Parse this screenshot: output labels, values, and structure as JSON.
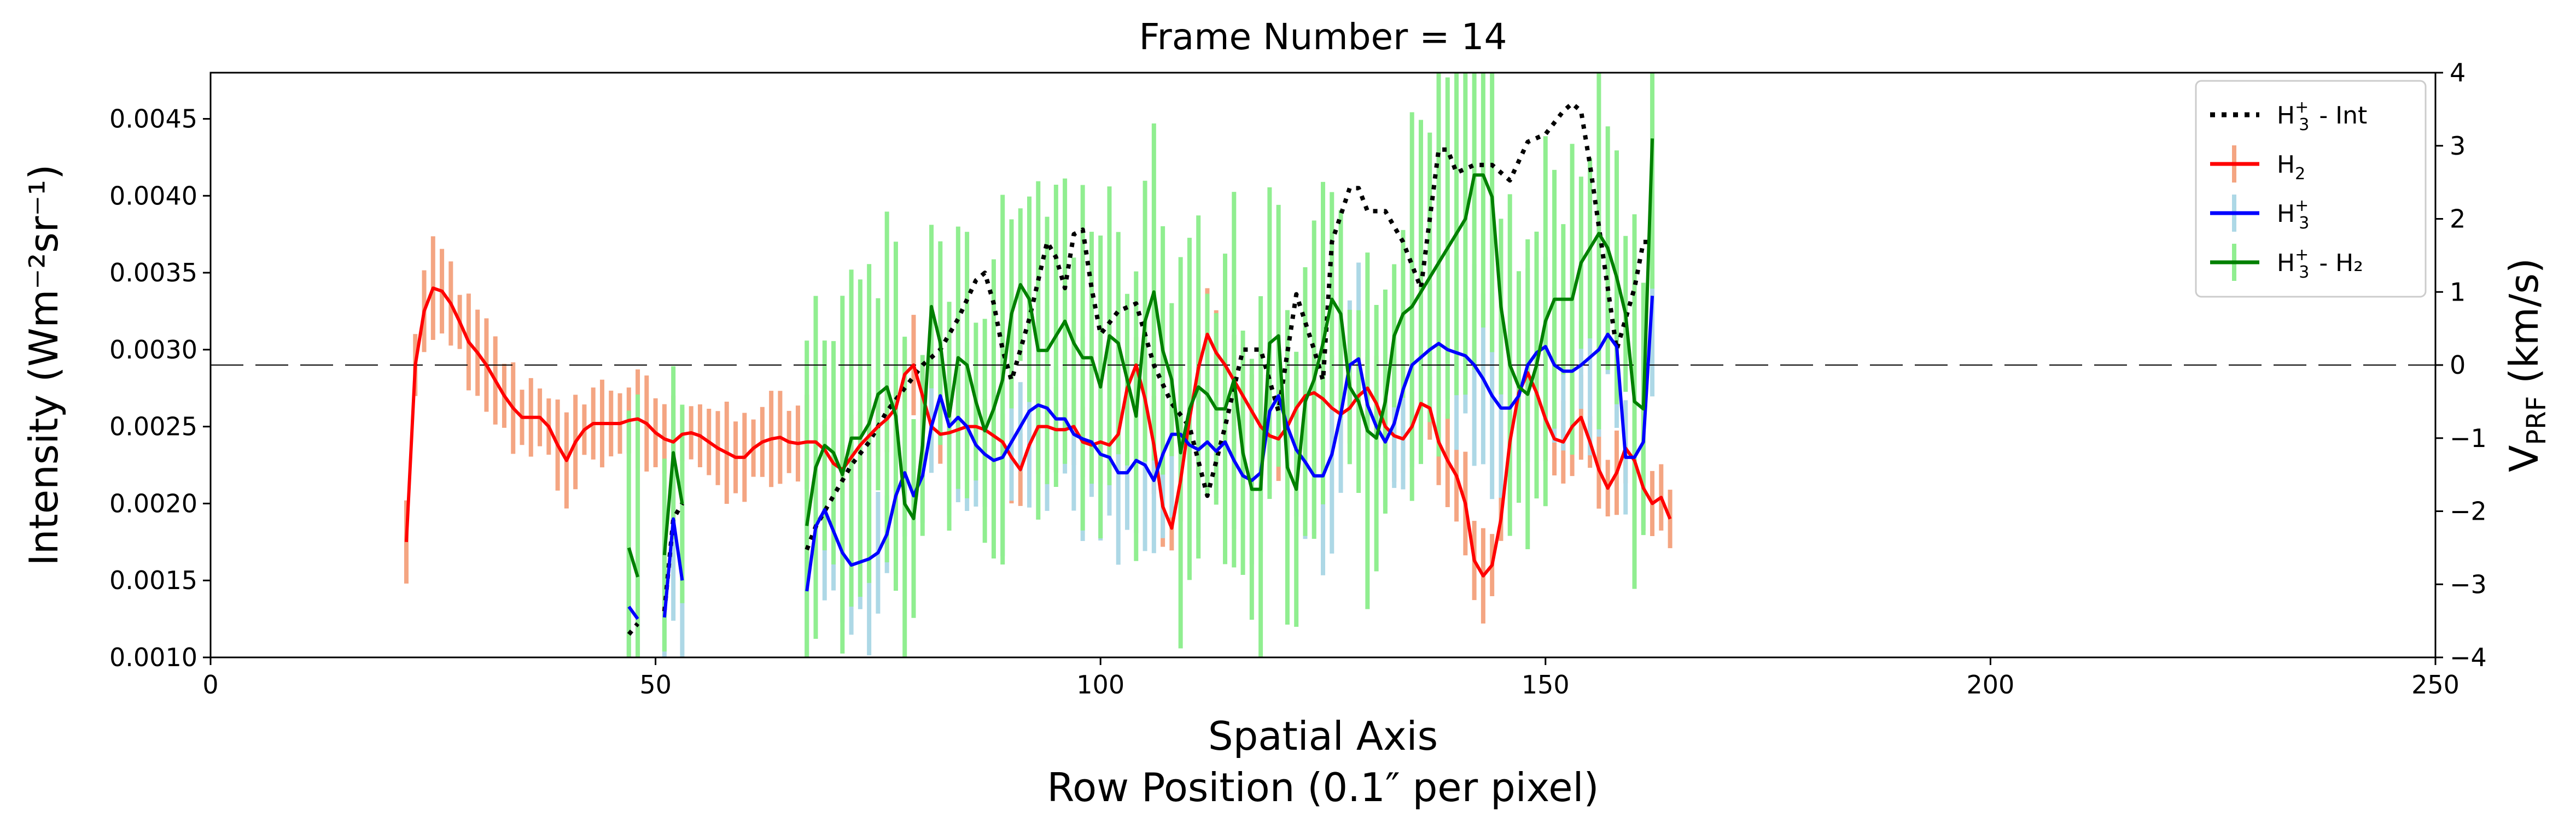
{
  "chart_data": {
    "type": "line",
    "title": "Frame Number = 14",
    "xlabel_line1": "Spatial Axis",
    "xlabel_line2": "Row Position (0.1″ per pixel)",
    "ylabel_left": "Intensity (Wm⁻²sr⁻¹)",
    "ylabel_right": "V",
    "ylabel_right_sub": "PRF",
    "ylabel_right_unit": " (km/s)",
    "xlim": [
      0,
      250
    ],
    "ylim_left": [
      0.001,
      0.0048
    ],
    "ylim_right": [
      -4,
      4
    ],
    "xticks": [
      0,
      50,
      100,
      150,
      200,
      250
    ],
    "xtick_labels": [
      "0",
      "50",
      "100",
      "150",
      "200",
      "250"
    ],
    "yticks_left": [
      0.001,
      0.0015,
      0.002,
      0.0025,
      0.003,
      0.0035,
      0.004,
      0.0045
    ],
    "ytick_labels_left": [
      "0.0010",
      "0.0015",
      "0.0020",
      "0.0025",
      "0.0030",
      "0.0035",
      "0.0040",
      "0.0045"
    ],
    "yticks_right": [
      -4,
      -3,
      -2,
      -1,
      0,
      1,
      2,
      3,
      4
    ],
    "ytick_labels_right": [
      "−4",
      "−3",
      "−2",
      "−1",
      "0",
      "1",
      "2",
      "3",
      "4"
    ],
    "zero_line": 0,
    "legend_position": "top-right",
    "series": [
      {
        "name": "H₃⁺ - Int",
        "label_base": "H",
        "label_sub": "3",
        "label_sup": "+",
        "label_rest": " - Int",
        "axis": "left",
        "color": "#000000",
        "style": "dotted",
        "segments": [
          {
            "x": [
              47,
              48
            ],
            "y": [
              0.00115,
              0.00122
            ]
          },
          {
            "x": [
              51,
              52,
              53
            ],
            "y": [
              0.0013,
              0.0019,
              0.002
            ]
          },
          {
            "x": [
              67,
              68,
              70,
              72,
              74,
              76,
              78,
              80,
              82,
              84,
              86,
              87,
              88,
              89,
              90,
              92,
              94,
              95,
              96,
              97,
              98,
              99,
              100,
              102,
              104,
              106,
              108,
              110,
              112,
              114,
              116,
              118,
              120,
              122,
              124,
              125,
              126,
              128,
              129,
              130,
              132,
              134,
              136,
              138,
              139,
              140,
              142,
              144,
              146,
              148,
              150,
              152,
              153,
              154,
              155,
              156,
              158,
              160,
              161,
              162
            ],
            "y": [
              0.0017,
              0.00185,
              0.00205,
              0.00225,
              0.0024,
              0.0026,
              0.00275,
              0.0029,
              0.003,
              0.0032,
              0.00345,
              0.0035,
              0.0033,
              0.003,
              0.0028,
              0.0032,
              0.0037,
              0.0036,
              0.0034,
              0.00375,
              0.00378,
              0.0034,
              0.0031,
              0.00325,
              0.0033,
              0.0029,
              0.00265,
              0.0025,
              0.00205,
              0.0025,
              0.003,
              0.003,
              0.0026,
              0.00336,
              0.003,
              0.0028,
              0.0037,
              0.00405,
              0.00405,
              0.0039,
              0.0039,
              0.0037,
              0.0034,
              0.0043,
              0.0043,
              0.00415,
              0.0042,
              0.0042,
              0.0041,
              0.00435,
              0.0044,
              0.00455,
              0.0046,
              0.00455,
              0.0042,
              0.0038,
              0.003,
              0.0034,
              0.0037,
              0.0037
            ]
          }
        ]
      },
      {
        "name": "H₂",
        "label_base": "H",
        "label_sub": "2",
        "label_sup": "",
        "label_rest": "",
        "axis": "left",
        "color": "#ff0000",
        "err_color": "#f4a582",
        "style": "solid",
        "segments": [
          {
            "x": [
              22,
              23,
              24,
              25,
              26,
              27,
              28,
              29,
              30,
              31,
              32,
              33,
              34,
              35,
              36,
              37,
              38,
              39,
              40,
              41,
              42,
              43,
              44,
              45,
              46,
              47,
              48,
              49,
              50,
              51,
              52,
              53,
              54,
              55,
              56,
              57,
              58,
              59,
              60,
              61,
              62,
              63,
              64,
              65,
              66,
              67,
              68,
              69,
              70,
              71,
              72,
              73,
              74,
              75,
              76,
              77,
              78,
              79,
              80,
              81,
              82,
              83,
              84,
              85,
              86,
              87,
              88,
              89,
              90,
              91,
              92,
              93,
              94,
              95,
              96,
              97,
              98,
              99,
              100,
              101,
              102,
              103,
              104,
              105,
              106,
              107,
              108,
              109,
              110,
              111,
              112,
              113,
              114,
              115,
              116,
              117,
              118,
              119,
              120,
              121,
              122,
              123,
              124,
              125,
              126,
              127,
              128,
              129,
              130,
              131,
              132,
              133,
              134,
              135,
              136,
              137,
              138,
              139,
              140,
              141,
              142,
              143,
              144,
              145,
              146,
              147,
              148,
              149,
              150,
              151,
              152,
              153,
              154,
              155,
              156,
              157,
              158,
              159,
              160,
              161,
              162,
              163,
              164
            ],
            "y": [
              0.00175,
              0.0029,
              0.00325,
              0.0034,
              0.00338,
              0.0033,
              0.00318,
              0.00305,
              0.00298,
              0.0029,
              0.0028,
              0.0027,
              0.00262,
              0.00256,
              0.00256,
              0.00256,
              0.0025,
              0.00238,
              0.00228,
              0.0024,
              0.00248,
              0.00252,
              0.00252,
              0.00252,
              0.00252,
              0.00254,
              0.00255,
              0.00252,
              0.00246,
              0.00242,
              0.0024,
              0.00245,
              0.00246,
              0.00244,
              0.0024,
              0.00236,
              0.00233,
              0.0023,
              0.0023,
              0.00236,
              0.0024,
              0.00242,
              0.00243,
              0.0024,
              0.00239,
              0.0024,
              0.0024,
              0.00235,
              0.00226,
              0.00222,
              0.0023,
              0.00238,
              0.00244,
              0.0025,
              0.00255,
              0.00262,
              0.00284,
              0.0029,
              0.0027,
              0.0025,
              0.00245,
              0.00246,
              0.00248,
              0.0025,
              0.0025,
              0.00248,
              0.00244,
              0.0024,
              0.0023,
              0.00222,
              0.00238,
              0.0025,
              0.0025,
              0.00248,
              0.00248,
              0.0025,
              0.0024,
              0.00238,
              0.0024,
              0.00238,
              0.00245,
              0.00275,
              0.0029,
              0.00268,
              0.00238,
              0.00198,
              0.00184,
              0.00215,
              0.00255,
              0.00288,
              0.0031,
              0.00298,
              0.0029,
              0.0028,
              0.0027,
              0.0026,
              0.0025,
              0.00244,
              0.00242,
              0.0025,
              0.00262,
              0.0027,
              0.00272,
              0.00268,
              0.00262,
              0.00258,
              0.00262,
              0.0027,
              0.00275,
              0.00265,
              0.0025,
              0.00244,
              0.00242,
              0.0025,
              0.00265,
              0.00262,
              0.0024,
              0.00228,
              0.00218,
              0.002,
              0.00163,
              0.00153,
              0.0016,
              0.0019,
              0.0024,
              0.00272,
              0.00285,
              0.00272,
              0.00255,
              0.00242,
              0.0024,
              0.0025,
              0.00256,
              0.0024,
              0.00222,
              0.0021,
              0.0022,
              0.00236,
              0.00228,
              0.0021,
              0.002,
              0.00204,
              0.0019
            ]
          }
        ]
      },
      {
        "name": "H₃⁺",
        "label_base": "H",
        "label_sub": "3",
        "label_sup": "+",
        "label_rest": "",
        "axis": "left",
        "color": "#0000ff",
        "err_color": "#add8e6",
        "style": "solid",
        "segments": [
          {
            "x": [
              47,
              48
            ],
            "y": [
              0.00133,
              0.00125
            ]
          },
          {
            "x": [
              51,
              52,
              53
            ],
            "y": [
              0.00126,
              0.0019,
              0.0015
            ]
          },
          {
            "x": [
              67,
              68,
              69,
              70,
              71,
              72,
              73,
              74,
              75,
              76,
              77,
              78,
              79,
              80,
              81,
              82,
              83,
              84,
              85,
              86,
              87,
              88,
              89,
              90,
              91,
              92,
              93,
              94,
              95,
              96,
              97,
              98,
              99,
              100,
              101,
              102,
              103,
              104,
              105,
              106,
              107,
              108,
              109,
              110,
              111,
              112,
              113,
              114,
              115,
              116,
              117,
              118,
              119,
              120,
              121,
              122,
              123,
              124,
              125,
              126,
              127,
              128,
              129,
              130,
              131,
              132,
              133,
              134,
              135,
              136,
              137,
              138,
              139,
              140,
              141,
              142,
              143,
              144,
              145,
              146,
              147,
              148,
              149,
              150,
              151,
              152,
              153,
              154,
              155,
              156,
              157,
              158,
              159,
              160,
              161,
              162
            ],
            "y": [
              0.00143,
              0.00185,
              0.00196,
              0.00182,
              0.00168,
              0.0016,
              0.00162,
              0.00164,
              0.00168,
              0.0018,
              0.00205,
              0.0022,
              0.00205,
              0.00218,
              0.0025,
              0.0027,
              0.0025,
              0.00256,
              0.0025,
              0.00238,
              0.00232,
              0.00228,
              0.0023,
              0.0024,
              0.0025,
              0.0026,
              0.00264,
              0.00262,
              0.00255,
              0.00255,
              0.00245,
              0.00242,
              0.0024,
              0.00232,
              0.0023,
              0.0022,
              0.0022,
              0.00228,
              0.00225,
              0.00215,
              0.00232,
              0.00245,
              0.00245,
              0.00238,
              0.00235,
              0.0024,
              0.00234,
              0.0024,
              0.00228,
              0.00218,
              0.00215,
              0.0022,
              0.0026,
              0.0027,
              0.0025,
              0.00235,
              0.00227,
              0.00218,
              0.00218,
              0.00232,
              0.00258,
              0.0029,
              0.00294,
              0.00264,
              0.0025,
              0.0024,
              0.00252,
              0.00274,
              0.0029,
              0.00295,
              0.003,
              0.00304,
              0.003,
              0.00298,
              0.00296,
              0.0029,
              0.00281,
              0.0027,
              0.00262,
              0.00262,
              0.0027,
              0.0029,
              0.00298,
              0.00302,
              0.0029,
              0.00286,
              0.00286,
              0.0029,
              0.00295,
              0.003,
              0.0031,
              0.00302,
              0.0023,
              0.0023,
              0.0024,
              0.00335
            ]
          }
        ]
      },
      {
        "name": "H₃⁺ - H₂",
        "label_base": "H",
        "label_sub": "3",
        "label_sup": "+",
        "label_rest": " - H₂",
        "axis": "right",
        "color": "#008000",
        "err_color": "#90ee90",
        "style": "solid",
        "segments": [
          {
            "x": [
              47,
              48
            ],
            "y": [
              -2.5,
              -2.9
            ]
          },
          {
            "x": [
              51,
              52,
              53
            ],
            "y": [
              -2.6,
              -1.2,
              -1.9
            ]
          },
          {
            "x": [
              67,
              68,
              69,
              70,
              71,
              72,
              73,
              74,
              75,
              76,
              77,
              78,
              79,
              80,
              81,
              82,
              83,
              84,
              85,
              86,
              87,
              88,
              89,
              90,
              91,
              92,
              93,
              94,
              95,
              96,
              97,
              98,
              99,
              100,
              101,
              102,
              103,
              104,
              105,
              106,
              107,
              108,
              109,
              110,
              111,
              112,
              113,
              114,
              115,
              116,
              117,
              118,
              119,
              120,
              121,
              122,
              123,
              124,
              125,
              126,
              127,
              128,
              129,
              130,
              131,
              132,
              133,
              134,
              135,
              136,
              137,
              138,
              139,
              140,
              141,
              142,
              143,
              144,
              145,
              146,
              147,
              148,
              149,
              150,
              151,
              152,
              153,
              154,
              155,
              156,
              157,
              158,
              159,
              160,
              161,
              162
            ],
            "y": [
              -2.2,
              -1.4,
              -1.1,
              -1.2,
              -1.5,
              -1.0,
              -1.0,
              -0.8,
              -0.4,
              -0.3,
              -0.7,
              -1.9,
              -2.1,
              -1.1,
              0.8,
              0.3,
              -0.7,
              0.1,
              0.0,
              -0.5,
              -0.9,
              -0.6,
              -0.2,
              0.7,
              1.1,
              0.9,
              0.2,
              0.2,
              0.4,
              0.6,
              0.3,
              0.1,
              0.1,
              -0.3,
              0.4,
              0.3,
              -0.2,
              -0.7,
              0.6,
              1.0,
              0.2,
              -0.2,
              -1.2,
              -0.6,
              -0.3,
              -0.4,
              -0.6,
              -0.6,
              -0.2,
              -1.2,
              -1.7,
              -1.7,
              0.3,
              0.4,
              -1.4,
              -1.7,
              -0.5,
              -0.2,
              0.3,
              0.9,
              0.7,
              -0.3,
              -0.5,
              -0.9,
              -1.0,
              -0.5,
              0.4,
              0.7,
              0.8,
              1.0,
              1.2,
              1.4,
              1.6,
              1.8,
              2.0,
              2.6,
              2.6,
              2.3,
              0.8,
              0.0,
              -0.3,
              -0.4,
              0.0,
              0.6,
              0.9,
              0.9,
              0.9,
              1.4,
              1.6,
              1.8,
              1.6,
              1.2,
              0.7,
              -0.5,
              -0.6,
              3.1
            ]
          }
        ]
      }
    ]
  }
}
